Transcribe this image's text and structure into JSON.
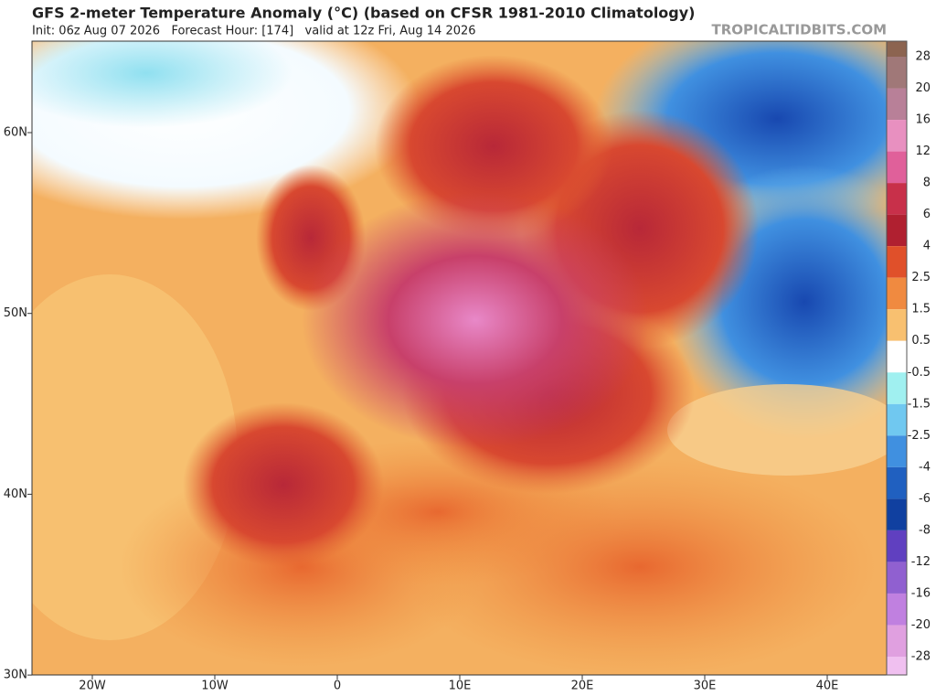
{
  "header": {
    "title": "GFS 2-meter Temperature Anomaly (°C) (based on CFSR 1981-2010 Climatology)",
    "subtitle": "Init: 06z Aug 07 2026   Forecast Hour: [174]   valid at 12z Fri, Aug 14 2026",
    "source": "TROPICALTIDBITS.COM"
  },
  "map": {
    "lat_labels": [
      "60N",
      "50N",
      "40N",
      "30N"
    ],
    "lon_labels": [
      "20W",
      "10W",
      "0",
      "10E",
      "20E",
      "30E",
      "40E"
    ]
  },
  "colorbar": {
    "labels": [
      28,
      20,
      16,
      12,
      8,
      6,
      4,
      2.5,
      1.5,
      0.5,
      -0.5,
      -1.5,
      -2.5,
      -4,
      -6,
      -8,
      -12,
      -16,
      -20,
      -28
    ]
  }
}
